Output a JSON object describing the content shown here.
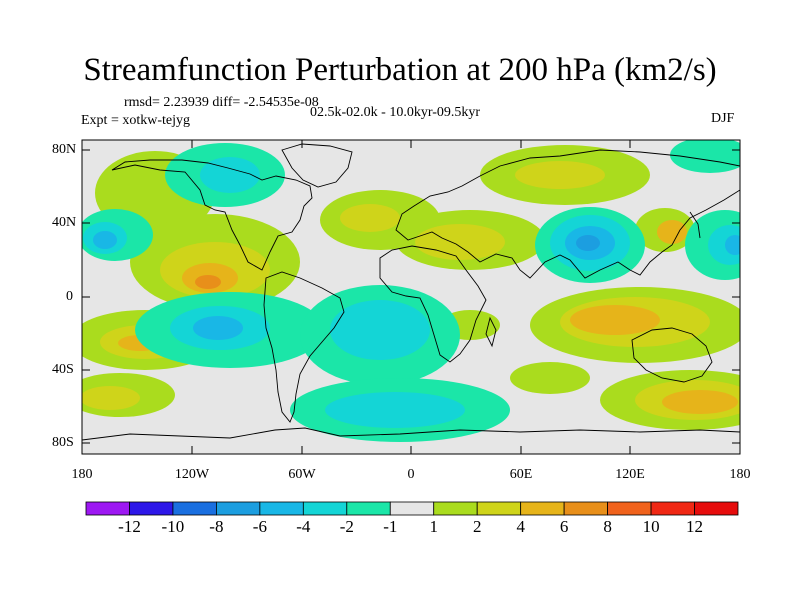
{
  "title": "Streamfunction Perturbation at 200 hPa (km2/s)",
  "stats": "rmsd= 2.23939  diff= -2.54535e-08",
  "experiment": "Expt = xotkw-tejyg",
  "period": "02.5k-02.0k - 10.0kyr-09.5kyr",
  "season": "DJF",
  "lat_labels": [
    "80N",
    "40N",
    "0",
    "40S",
    "80S"
  ],
  "lon_labels": [
    "180",
    "120W",
    "60W",
    "0",
    "60E",
    "120E",
    "180"
  ],
  "colorbar_labels": [
    "-12",
    "-10",
    "-8",
    "-6",
    "-4",
    "-2",
    "-1",
    "1",
    "2",
    "4",
    "6",
    "8",
    "10",
    "12"
  ],
  "colorbar_colors": [
    "#9d18f2",
    "#2d17e8",
    "#1a6fe0",
    "#1c9ee0",
    "#19b7e6",
    "#14d5d6",
    "#1be6a8",
    "#e6e6e6",
    "#aadc1e",
    "#cfd41a",
    "#e6b41a",
    "#e88f1a",
    "#f0621c",
    "#f02814",
    "#e60c0c"
  ],
  "colors": {
    "background": "#e6e6e6",
    "coast": "#000000"
  }
}
